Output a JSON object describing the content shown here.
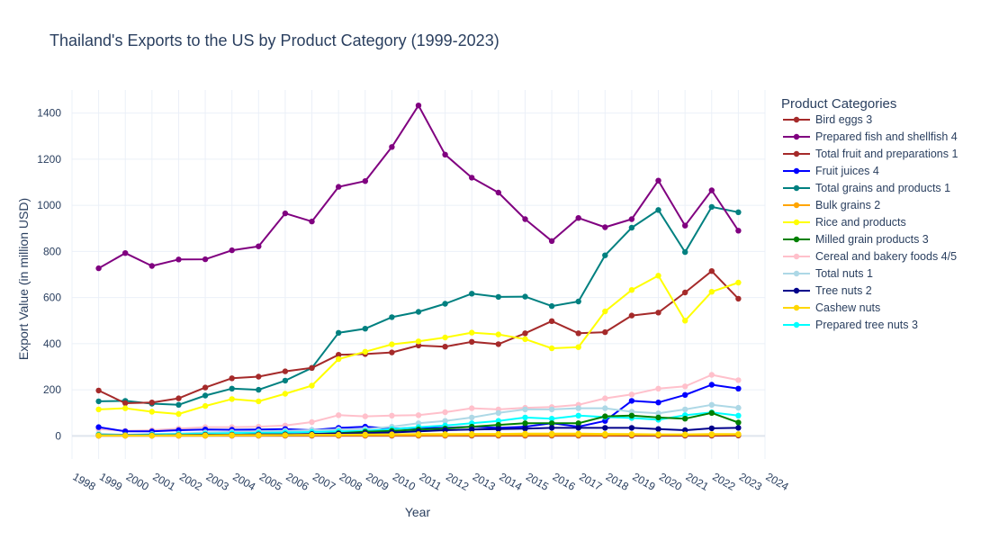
{
  "chart_data": {
    "type": "line",
    "title": "Thailand's Exports to the US by Product Category (1999-2023)",
    "xlabel": "Year",
    "ylabel": "Export Value (in million USD)",
    "xlim": [
      1998,
      2024
    ],
    "ylim": [
      -100,
      1500
    ],
    "xticks": [
      1998,
      1999,
      2000,
      2001,
      2002,
      2003,
      2004,
      2005,
      2006,
      2007,
      2008,
      2009,
      2010,
      2011,
      2012,
      2013,
      2014,
      2015,
      2016,
      2017,
      2018,
      2019,
      2020,
      2021,
      2022,
      2023,
      2024
    ],
    "yticks": [
      0,
      200,
      400,
      600,
      800,
      1000,
      1200,
      1400
    ],
    "grid": true,
    "legend_title": "Product Categories",
    "legend_placement": "right",
    "x": [
      1999,
      2000,
      2001,
      2002,
      2003,
      2004,
      2005,
      2006,
      2007,
      2008,
      2009,
      2010,
      2011,
      2012,
      2013,
      2014,
      2015,
      2016,
      2017,
      2018,
      2019,
      2020,
      2021,
      2022,
      2023
    ],
    "series": [
      {
        "name": "Bird eggs 3",
        "color": "#a52a2a",
        "values": [
          1,
          1,
          1,
          1,
          1,
          1,
          1,
          1,
          1,
          1,
          1,
          1,
          1,
          1,
          1,
          1,
          1,
          1,
          1,
          1,
          1,
          1,
          1,
          1,
          2
        ]
      },
      {
        "name": "Total grains and products 1",
        "color": "#008080",
        "values": [
          150,
          152,
          140,
          135,
          175,
          205,
          200,
          240,
          295,
          447,
          465,
          515,
          538,
          573,
          617,
          603,
          604,
          563,
          583,
          783,
          903,
          980,
          797,
          993,
          970
        ]
      },
      {
        "name": "Total fruit and preparations 1",
        "color": "#a52a2a",
        "values": [
          197,
          142,
          145,
          163,
          210,
          250,
          257,
          280,
          295,
          352,
          355,
          362,
          392,
          387,
          408,
          398,
          445,
          498,
          445,
          450,
          522,
          535,
          622,
          715,
          595
        ]
      },
      {
        "name": "Rice and products",
        "color": "#ffff00",
        "values": [
          115,
          120,
          105,
          95,
          130,
          160,
          150,
          183,
          218,
          333,
          365,
          397,
          410,
          427,
          448,
          440,
          420,
          380,
          385,
          540,
          633,
          695,
          500,
          625,
          665
        ]
      },
      {
        "name": "Cereal and bakery foods 4/5",
        "color": "#ffc0cb",
        "values": [
          30,
          22,
          25,
          32,
          38,
          38,
          40,
          45,
          60,
          90,
          85,
          88,
          90,
          103,
          120,
          115,
          122,
          125,
          135,
          163,
          180,
          205,
          215,
          265,
          242
        ]
      },
      {
        "name": "Fruit juices 4",
        "color": "#0000ff",
        "values": [
          38,
          20,
          20,
          25,
          28,
          27,
          28,
          30,
          25,
          35,
          40,
          32,
          35,
          35,
          40,
          35,
          40,
          55,
          40,
          65,
          152,
          145,
          178,
          222,
          205
        ]
      },
      {
        "name": "Total nuts 1",
        "color": "#add8e6",
        "values": [
          10,
          5,
          8,
          10,
          15,
          17,
          20,
          22,
          25,
          28,
          30,
          40,
          55,
          65,
          80,
          100,
          115,
          115,
          120,
          120,
          105,
          98,
          115,
          135,
          122
        ]
      },
      {
        "name": "Prepared tree nuts 3",
        "color": "#00ffff",
        "values": [
          5,
          4,
          6,
          8,
          10,
          12,
          13,
          15,
          17,
          20,
          22,
          30,
          38,
          45,
          55,
          65,
          80,
          75,
          88,
          82,
          78,
          70,
          90,
          102,
          88
        ]
      },
      {
        "name": "Milled grain products 3",
        "color": "#008000",
        "values": [
          3,
          3,
          3,
          4,
          5,
          5,
          6,
          7,
          8,
          12,
          18,
          22,
          28,
          32,
          40,
          48,
          55,
          55,
          55,
          85,
          88,
          80,
          75,
          100,
          58
        ]
      },
      {
        "name": "Tree nuts 2",
        "color": "#00008b",
        "values": [
          2,
          3,
          3,
          4,
          5,
          5,
          6,
          6,
          8,
          10,
          12,
          15,
          20,
          25,
          28,
          30,
          32,
          35,
          35,
          35,
          35,
          30,
          25,
          33,
          35
        ]
      },
      {
        "name": "Bulk grains 2",
        "color": "#ffa500",
        "values": [
          1,
          1,
          1,
          1,
          1,
          2,
          2,
          3,
          3,
          3,
          3,
          3,
          3,
          3,
          4,
          4,
          4,
          4,
          4,
          4,
          5,
          5,
          5,
          5,
          6
        ]
      },
      {
        "name": "Cashew nuts",
        "color": "#ffd700",
        "values": [
          2,
          2,
          2,
          3,
          3,
          4,
          4,
          4,
          5,
          5,
          6,
          7,
          8,
          8,
          9,
          9,
          10,
          10,
          10,
          9,
          8,
          7,
          7,
          8,
          8
        ]
      },
      {
        "name": "Prepared fish and shellfish 4",
        "color": "#800080",
        "values": [
          727,
          793,
          737,
          765,
          766,
          805,
          822,
          965,
          930,
          1080,
          1105,
          1253,
          1433,
          1220,
          1120,
          1055,
          940,
          845,
          945,
          905,
          940,
          1107,
          912,
          1065,
          890
        ]
      }
    ],
    "legend_order": [
      "Bird eggs 3",
      "Prepared fish and shellfish 4",
      "Total fruit and preparations 1",
      "Fruit juices 4",
      "Total grains and products 1",
      "Bulk grains 2",
      "Rice and products",
      "Milled grain products 3",
      "Cereal and bakery foods 4/5",
      "Total nuts 1",
      "Tree nuts 2",
      "Cashew nuts",
      "Prepared tree nuts 3"
    ]
  }
}
